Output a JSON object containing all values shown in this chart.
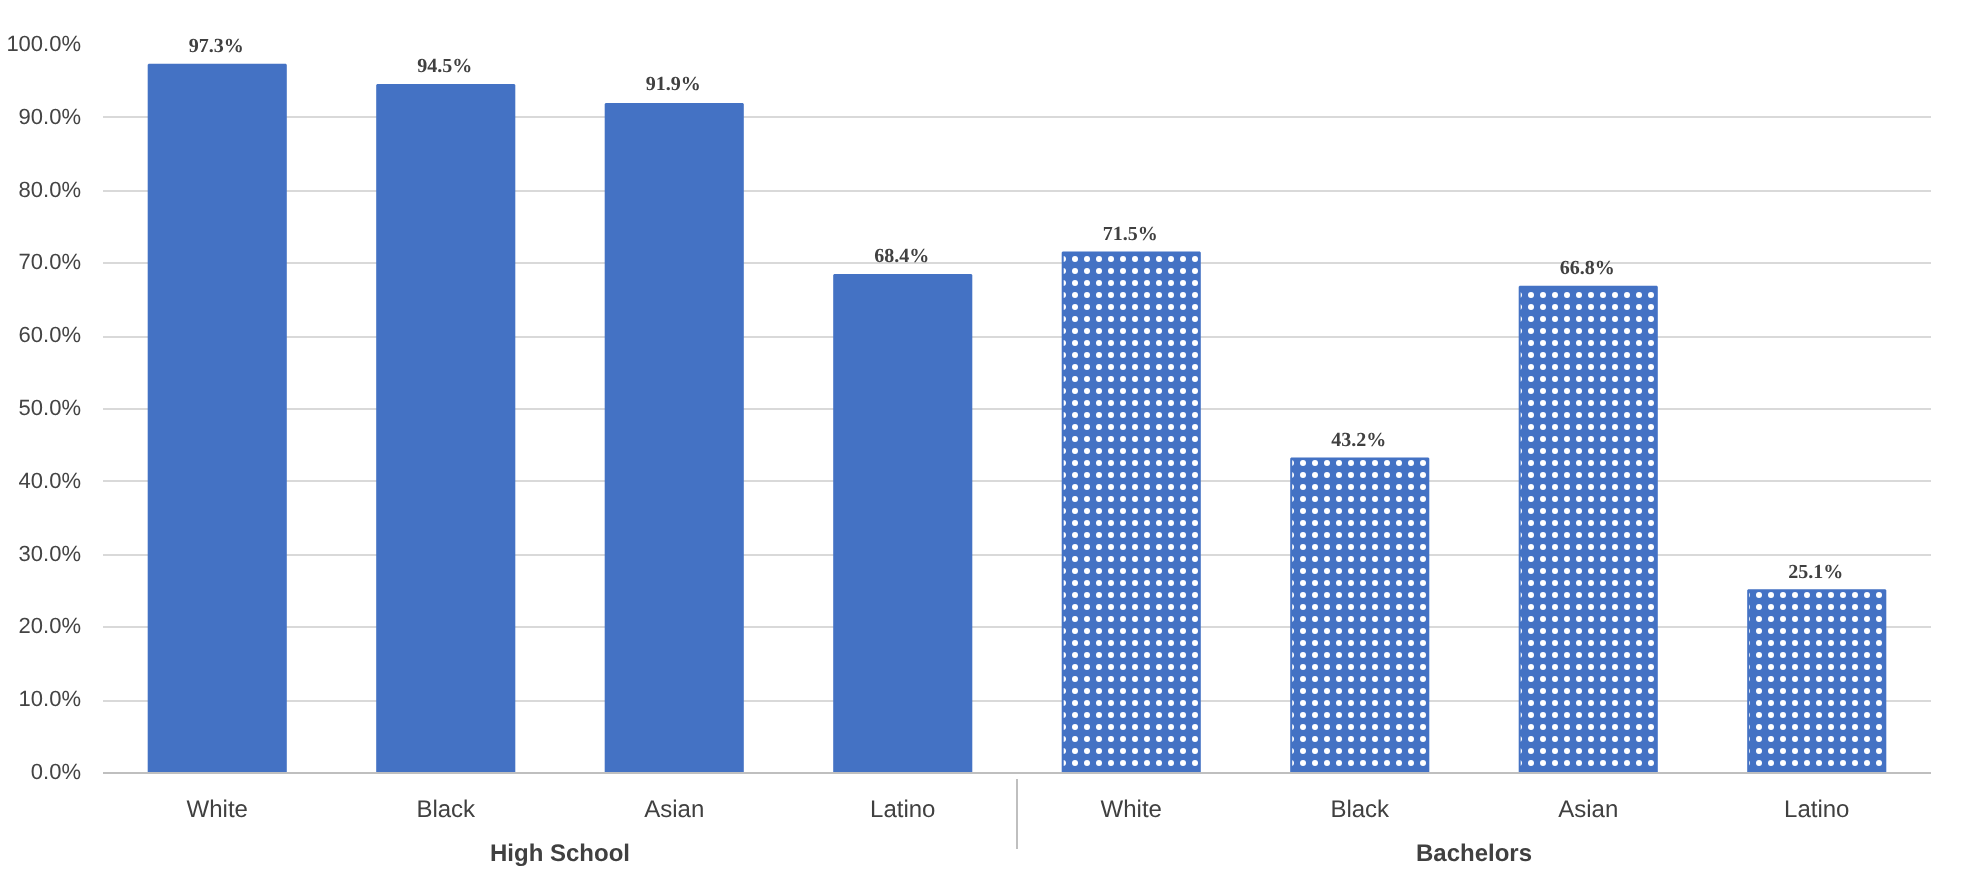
{
  "chart_data": {
    "type": "bar",
    "categories": [
      "White",
      "Black",
      "Asian",
      "Latino",
      "White",
      "Black",
      "Asian",
      "Latino"
    ],
    "series": [
      {
        "name": "High School",
        "color": "#4472c4",
        "values": [
          97.3,
          94.5,
          91.9,
          68.4,
          null,
          null,
          null,
          null
        ],
        "value_labels": [
          "97.3%",
          "94.5%",
          "91.9%",
          "68.4%",
          null,
          null,
          null,
          null
        ]
      },
      {
        "name": "Bachelors",
        "color": "#4472c4",
        "values": [
          null,
          null,
          null,
          null,
          71.5,
          43.2,
          66.8,
          25.1
        ],
        "value_labels": [
          null,
          null,
          null,
          null,
          "71.5%",
          "43.2%",
          "66.8%",
          "25.1%"
        ]
      }
    ],
    "ylim": [
      0,
      100
    ],
    "yticks": [
      {
        "value": 0,
        "label": "0.0%"
      },
      {
        "value": 10,
        "label": "10.0%"
      },
      {
        "value": 20,
        "label": "20.0%"
      },
      {
        "value": 30,
        "label": "30.0%"
      },
      {
        "value": 40,
        "label": "40.0%"
      },
      {
        "value": 50,
        "label": "50.0%"
      },
      {
        "value": 60,
        "label": "60.0%"
      },
      {
        "value": 70,
        "label": "70.0%"
      },
      {
        "value": 80,
        "label": "80.0%"
      },
      {
        "value": 90,
        "label": "90.0%"
      },
      {
        "value": 100,
        "label": "100.0%"
      }
    ],
    "grid": "y",
    "legend": false
  }
}
